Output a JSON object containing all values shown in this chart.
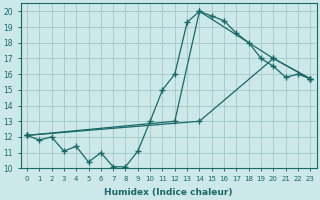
{
  "bg_color": "#cce8e8",
  "grid_color": "#aacccc",
  "line_color": "#1a6868",
  "xlabel": "Humidex (Indice chaleur)",
  "xlim": [
    -0.5,
    23.5
  ],
  "ylim": [
    10,
    20.5
  ],
  "yticks": [
    10,
    11,
    12,
    13,
    14,
    15,
    16,
    17,
    18,
    19,
    20
  ],
  "xticks": [
    0,
    1,
    2,
    3,
    4,
    5,
    6,
    7,
    8,
    9,
    10,
    11,
    12,
    13,
    14,
    15,
    16,
    17,
    18,
    19,
    20,
    21,
    22,
    23
  ],
  "line1_x": [
    0,
    1,
    2,
    3,
    4,
    5,
    6,
    7,
    8,
    9,
    10,
    11,
    12,
    13,
    14,
    15,
    16,
    17,
    18,
    19,
    20,
    21,
    22,
    23
  ],
  "line1_y": [
    12.1,
    11.8,
    12.0,
    11.1,
    11.4,
    10.4,
    11.0,
    10.1,
    10.1,
    11.1,
    13.0,
    15.0,
    16.0,
    19.3,
    20.0,
    19.7,
    19.4,
    18.6,
    18.0,
    17.0,
    16.5,
    15.8,
    16.0,
    15.7
  ],
  "line2_x": [
    0,
    12,
    14,
    20,
    23
  ],
  "line2_y": [
    12.1,
    13.0,
    20.0,
    17.0,
    15.7
  ],
  "line3_x": [
    0,
    14,
    20,
    23
  ],
  "line3_y": [
    12.1,
    13.0,
    17.0,
    15.7
  ]
}
